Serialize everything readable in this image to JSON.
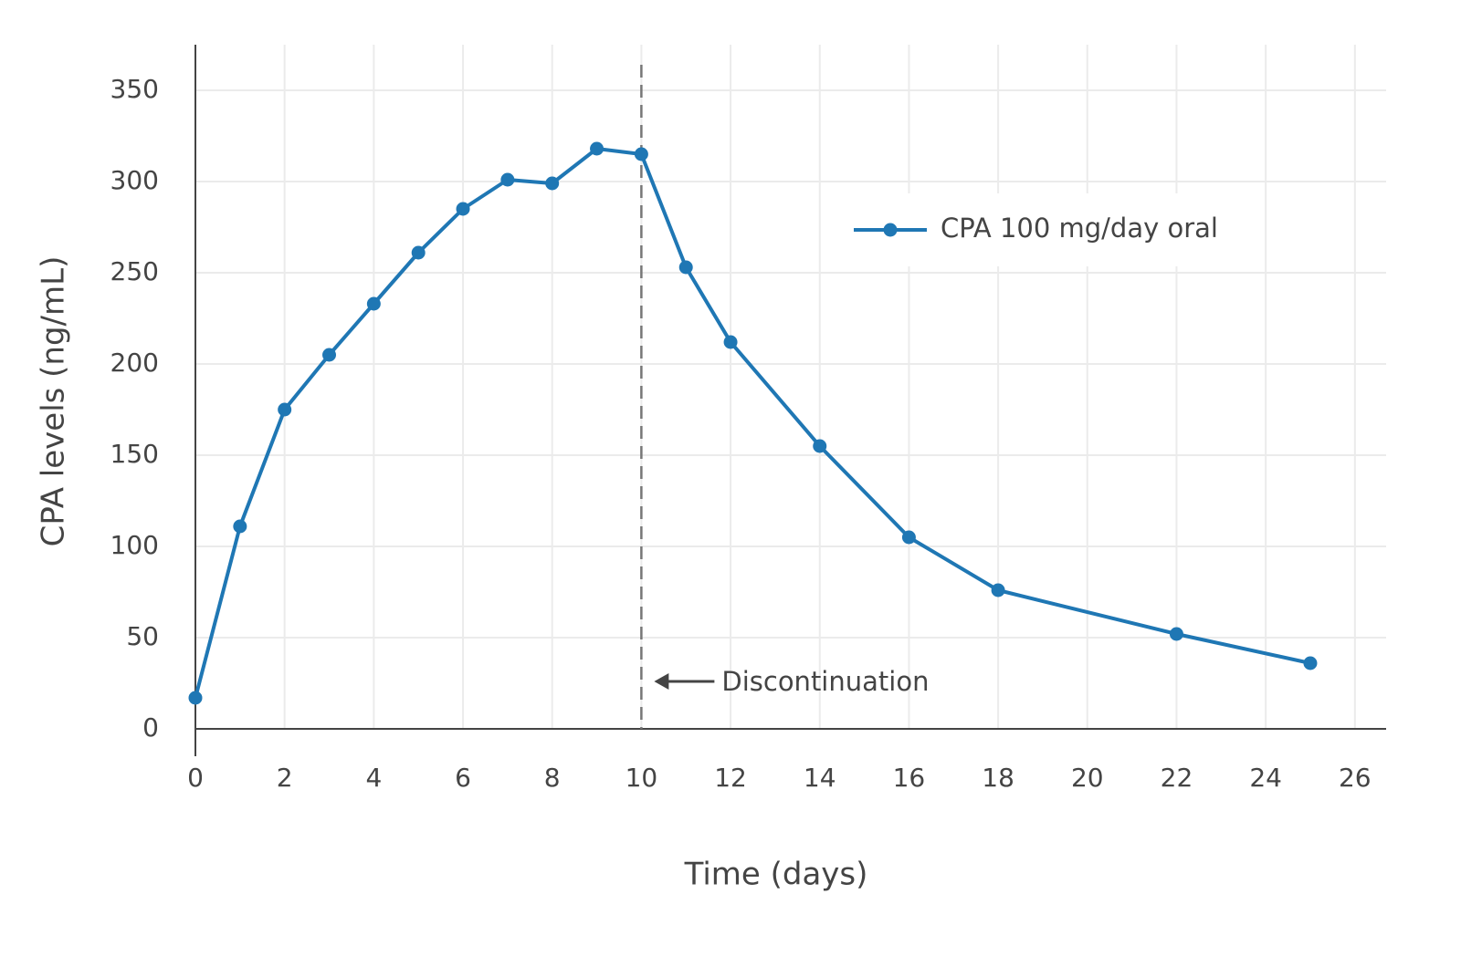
{
  "chart_data": {
    "type": "line",
    "x_label": "Time (days)",
    "y_label": "CPA levels (ng/mL)",
    "x": [
      0,
      1,
      2,
      3,
      4,
      5,
      6,
      7,
      8,
      9,
      10,
      11,
      12,
      14,
      16,
      18,
      22,
      25
    ],
    "series": [
      {
        "name": "CPA 100 mg/day oral",
        "color": "#1f77b4",
        "values": [
          17,
          111,
          175,
          205,
          233,
          261,
          285,
          301,
          299,
          318,
          315,
          253,
          212,
          155,
          105,
          76,
          52,
          36
        ]
      }
    ],
    "xlim": [
      0,
      26.7
    ],
    "ylim": [
      0,
      375
    ],
    "xticks": [
      0,
      2,
      4,
      6,
      8,
      10,
      12,
      14,
      16,
      18,
      20,
      22,
      24,
      26
    ],
    "yticks": [
      0,
      50,
      100,
      150,
      200,
      250,
      300,
      350
    ],
    "grid": true,
    "legend": "upper right",
    "annotation": {
      "text": "Discontinuation",
      "x": 10,
      "y": 25
    }
  }
}
